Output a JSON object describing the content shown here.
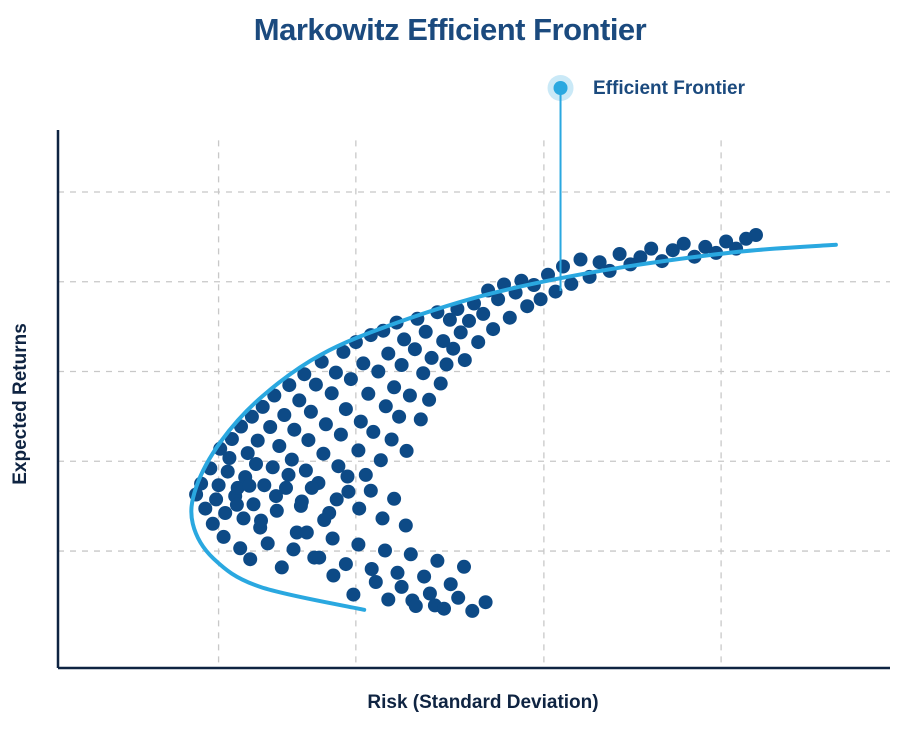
{
  "chart_data": {
    "type": "scatter",
    "title": "Markowitz Efficient Frontier",
    "xlabel": "Risk (Standard Deviation)",
    "ylabel": "Expected Returns",
    "xlim": [
      0,
      100
    ],
    "ylim": [
      0,
      100
    ],
    "grid": true,
    "frontier_label": "Efficient Frontier",
    "colors": {
      "title": "#1b4a7e",
      "points": "#0d4a86",
      "frontier": "#2aa8e0",
      "grid": "#c8c8c8",
      "axis": "#0f2442"
    },
    "frontier": [
      [
        36.8,
        10.7
      ],
      [
        24.3,
        14.9
      ],
      [
        18.7,
        20.1
      ],
      [
        16.2,
        26.5
      ],
      [
        16.6,
        33.2
      ],
      [
        19.6,
        41.7
      ],
      [
        24.6,
        50.0
      ],
      [
        31.6,
        57.6
      ],
      [
        40.6,
        63.4
      ],
      [
        52.2,
        68.9
      ],
      [
        66.4,
        73.3
      ],
      [
        81.8,
        76.5
      ],
      [
        93.5,
        77.8
      ]
    ],
    "frontier_point": [
      60.4,
      69.3
    ],
    "points": [
      [
        16.6,
        31.9
      ],
      [
        17.2,
        33.9
      ],
      [
        17.7,
        29.3
      ],
      [
        18.3,
        36.7
      ],
      [
        18.6,
        26.5
      ],
      [
        19.0,
        31.0
      ],
      [
        19.3,
        33.6
      ],
      [
        19.5,
        40.3
      ],
      [
        19.9,
        24.1
      ],
      [
        20.1,
        28.5
      ],
      [
        20.4,
        36.1
      ],
      [
        20.6,
        38.6
      ],
      [
        20.9,
        42.1
      ],
      [
        21.3,
        31.6
      ],
      [
        21.6,
        33.1
      ],
      [
        21.9,
        22.0
      ],
      [
        22.0,
        44.4
      ],
      [
        22.3,
        27.5
      ],
      [
        22.5,
        35.1
      ],
      [
        22.8,
        39.5
      ],
      [
        23.1,
        20.0
      ],
      [
        23.3,
        46.2
      ],
      [
        23.5,
        30.1
      ],
      [
        23.8,
        37.5
      ],
      [
        24.0,
        41.8
      ],
      [
        24.3,
        25.8
      ],
      [
        24.6,
        48.0
      ],
      [
        24.8,
        33.6
      ],
      [
        25.2,
        22.9
      ],
      [
        25.5,
        44.3
      ],
      [
        25.8,
        36.9
      ],
      [
        26.0,
        50.1
      ],
      [
        26.3,
        28.9
      ],
      [
        26.6,
        40.8
      ],
      [
        26.9,
        18.5
      ],
      [
        27.2,
        46.5
      ],
      [
        27.4,
        33.1
      ],
      [
        27.8,
        52.0
      ],
      [
        28.1,
        38.3
      ],
      [
        28.4,
        43.8
      ],
      [
        28.7,
        24.9
      ],
      [
        29.0,
        49.2
      ],
      [
        29.3,
        30.6
      ],
      [
        29.6,
        54.0
      ],
      [
        29.8,
        36.3
      ],
      [
        30.1,
        41.9
      ],
      [
        30.4,
        47.1
      ],
      [
        30.8,
        20.3
      ],
      [
        31.0,
        52.1
      ],
      [
        31.3,
        34.0
      ],
      [
        31.7,
        56.3
      ],
      [
        31.9,
        39.4
      ],
      [
        32.2,
        44.8
      ],
      [
        32.6,
        28.5
      ],
      [
        32.9,
        50.5
      ],
      [
        33.1,
        17.0
      ],
      [
        33.4,
        54.3
      ],
      [
        33.7,
        37.1
      ],
      [
        34.0,
        42.9
      ],
      [
        34.3,
        58.1
      ],
      [
        34.6,
        47.6
      ],
      [
        34.9,
        32.4
      ],
      [
        35.2,
        53.1
      ],
      [
        35.5,
        13.5
      ],
      [
        35.8,
        59.9
      ],
      [
        36.1,
        40.0
      ],
      [
        36.4,
        45.3
      ],
      [
        36.7,
        56.0
      ],
      [
        37.0,
        35.5
      ],
      [
        37.3,
        50.4
      ],
      [
        37.6,
        61.2
      ],
      [
        37.9,
        43.4
      ],
      [
        38.2,
        15.8
      ],
      [
        38.5,
        54.5
      ],
      [
        38.8,
        38.2
      ],
      [
        39.1,
        62.0
      ],
      [
        39.4,
        48.1
      ],
      [
        39.7,
        57.8
      ],
      [
        40.1,
        42.0
      ],
      [
        40.4,
        51.6
      ],
      [
        40.7,
        63.5
      ],
      [
        41.0,
        46.2
      ],
      [
        41.3,
        55.7
      ],
      [
        41.6,
        60.4
      ],
      [
        41.9,
        39.9
      ],
      [
        42.3,
        50.1
      ],
      [
        42.6,
        12.4
      ],
      [
        42.9,
        58.6
      ],
      [
        43.2,
        64.2
      ],
      [
        43.6,
        45.7
      ],
      [
        43.9,
        54.2
      ],
      [
        44.2,
        61.8
      ],
      [
        44.6,
        49.3
      ],
      [
        44.9,
        57.0
      ],
      [
        45.3,
        11.5
      ],
      [
        45.6,
        65.4
      ],
      [
        46.0,
        52.3
      ],
      [
        46.3,
        60.1
      ],
      [
        46.7,
        55.8
      ],
      [
        47.1,
        64.0
      ],
      [
        47.5,
        58.7
      ],
      [
        48.0,
        66.0
      ],
      [
        48.4,
        61.7
      ],
      [
        48.9,
        56.6
      ],
      [
        49.4,
        63.8
      ],
      [
        50.0,
        67.0
      ],
      [
        50.5,
        59.9
      ],
      [
        51.1,
        65.1
      ],
      [
        51.7,
        69.4
      ],
      [
        52.3,
        62.3
      ],
      [
        52.9,
        67.8
      ],
      [
        53.6,
        70.5
      ],
      [
        54.3,
        64.4
      ],
      [
        55.0,
        69.0
      ],
      [
        55.7,
        71.2
      ],
      [
        56.4,
        66.5
      ],
      [
        57.2,
        70.4
      ],
      [
        58.0,
        67.8
      ],
      [
        58.9,
        72.3
      ],
      [
        59.8,
        69.2
      ],
      [
        60.7,
        73.8
      ],
      [
        61.7,
        70.6
      ],
      [
        62.8,
        75.1
      ],
      [
        63.9,
        71.9
      ],
      [
        65.1,
        74.6
      ],
      [
        66.3,
        73.0
      ],
      [
        67.5,
        76.1
      ],
      [
        68.8,
        74.2
      ],
      [
        70.0,
        75.5
      ],
      [
        71.3,
        77.1
      ],
      [
        72.6,
        74.8
      ],
      [
        73.9,
        76.8
      ],
      [
        75.2,
        78.0
      ],
      [
        76.5,
        75.6
      ],
      [
        77.8,
        77.4
      ],
      [
        79.1,
        76.3
      ],
      [
        80.3,
        78.4
      ],
      [
        81.5,
        77.1
      ],
      [
        82.7,
        78.9
      ],
      [
        83.9,
        79.6
      ],
      [
        21.5,
        30.0
      ],
      [
        23.0,
        33.5
      ],
      [
        24.4,
        27.1
      ],
      [
        26.2,
        31.6
      ],
      [
        27.7,
        35.5
      ],
      [
        29.2,
        29.8
      ],
      [
        30.5,
        33.1
      ],
      [
        32.0,
        27.2
      ],
      [
        33.5,
        31.0
      ],
      [
        34.8,
        35.2
      ],
      [
        36.2,
        29.3
      ],
      [
        37.6,
        32.6
      ],
      [
        39.0,
        27.5
      ],
      [
        40.4,
        31.1
      ],
      [
        41.8,
        26.2
      ],
      [
        28.3,
        21.8
      ],
      [
        29.9,
        24.9
      ],
      [
        31.4,
        20.3
      ],
      [
        33.0,
        23.8
      ],
      [
        34.6,
        19.1
      ],
      [
        36.1,
        22.7
      ],
      [
        37.7,
        18.2
      ],
      [
        39.3,
        21.6
      ],
      [
        40.8,
        17.5
      ],
      [
        42.4,
        20.9
      ],
      [
        44.0,
        16.8
      ],
      [
        45.6,
        19.7
      ],
      [
        47.2,
        15.4
      ],
      [
        48.8,
        18.6
      ],
      [
        39.7,
        12.6
      ],
      [
        41.3,
        14.9
      ],
      [
        43.0,
        11.4
      ],
      [
        44.7,
        13.7
      ],
      [
        46.4,
        10.9
      ],
      [
        48.1,
        12.9
      ],
      [
        49.8,
        10.5
      ],
      [
        51.4,
        12.1
      ]
    ]
  }
}
